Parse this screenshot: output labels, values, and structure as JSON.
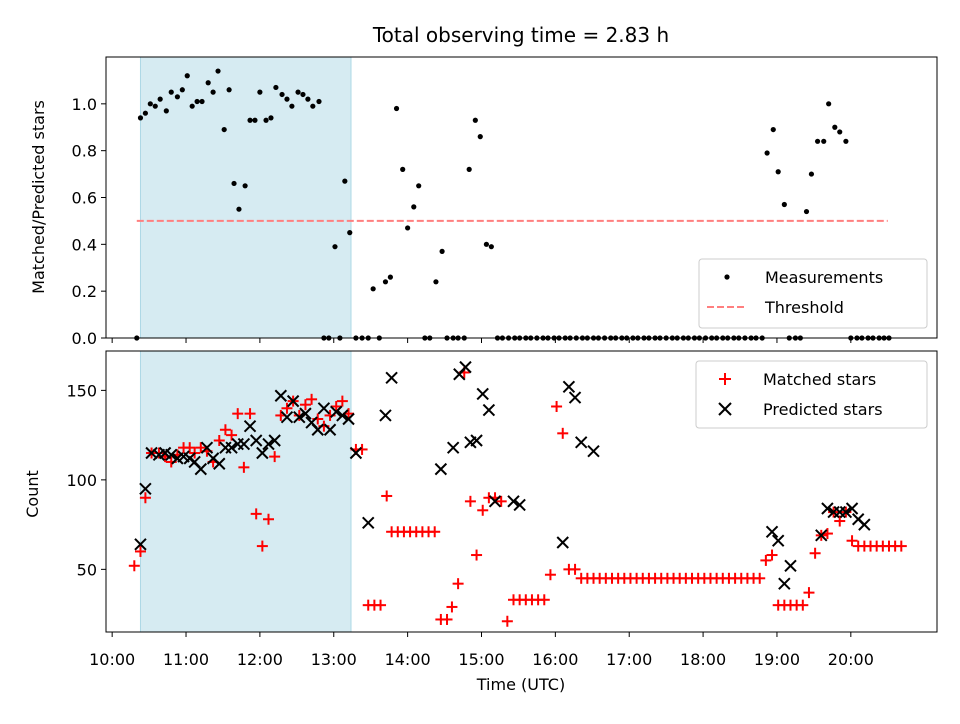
{
  "title": "Total observing time = 2.83 h",
  "colors": {
    "shade": "#add8e6",
    "threshold": "#ff7f7f",
    "matched": "#ff0000",
    "predicted": "#000000",
    "measurement": "#000000"
  },
  "chart_data": [
    {
      "type": "scatter",
      "ylabel": "Matched/Predicted stars",
      "xlabel": "",
      "xlim": [
        "09:55",
        "21:10"
      ],
      "ylim": [
        0,
        1.2
      ],
      "y_ticks": [
        "0.0",
        "0.2",
        "0.4",
        "0.6",
        "0.8",
        "1.0"
      ],
      "shaded_region": [
        "10:23",
        "13:14"
      ],
      "threshold": {
        "name": "Threshold",
        "value": 0.5,
        "x": [
          "10:20",
          "20:30"
        ],
        "style": "dashed"
      },
      "legend": {
        "position": "lower-right",
        "entries": [
          "Measurements",
          "Threshold"
        ]
      },
      "series": [
        {
          "name": "Measurements",
          "x": [
            "10:20",
            "10:23",
            "10:27",
            "10:31",
            "10:35",
            "10:39",
            "10:44",
            "10:48",
            "10:53",
            "10:57",
            "11:01",
            "11:05",
            "11:09",
            "11:13",
            "11:18",
            "11:22",
            "11:26",
            "11:31",
            "11:35",
            "11:39",
            "11:43",
            "11:48",
            "11:52",
            "11:56",
            "12:00",
            "12:05",
            "12:09",
            "12:13",
            "12:18",
            "12:22",
            "12:26",
            "12:31",
            "12:35",
            "12:39",
            "12:43",
            "12:48",
            "12:52",
            "12:56",
            "13:01",
            "13:05",
            "13:09",
            "13:13",
            "13:18",
            "13:23",
            "13:28",
            "13:32",
            "13:37",
            "13:42",
            "13:46",
            "13:51",
            "13:56",
            "14:00",
            "14:05",
            "14:09",
            "14:14",
            "14:18",
            "14:23",
            "14:28",
            "14:32",
            "14:37",
            "14:41",
            "14:46",
            "14:50",
            "14:55",
            "14:59",
            "15:04",
            "15:08",
            "15:13",
            "15:17",
            "15:22",
            "15:27",
            "15:31",
            "15:36",
            "15:40",
            "15:45",
            "15:50",
            "15:54",
            "15:59",
            "16:03",
            "16:08",
            "16:12",
            "16:17",
            "16:22",
            "16:26",
            "16:31",
            "16:35",
            "16:40",
            "16:45",
            "16:49",
            "16:54",
            "16:58",
            "17:03",
            "17:07",
            "17:12",
            "17:16",
            "17:21",
            "17:25",
            "17:30",
            "17:35",
            "17:39",
            "17:44",
            "17:48",
            "17:53",
            "17:57",
            "18:02",
            "18:07",
            "18:11",
            "18:16",
            "18:20",
            "18:25",
            "18:29",
            "18:34",
            "18:39",
            "18:43",
            "18:48",
            "18:52",
            "18:57",
            "19:01",
            "19:06",
            "19:10",
            "19:15",
            "19:19",
            "19:24",
            "19:28",
            "19:33",
            "19:38",
            "19:42",
            "19:47",
            "19:51",
            "19:56",
            "20:00",
            "20:05",
            "20:09",
            "20:14",
            "20:18",
            "20:23",
            "20:27",
            "20:31"
          ],
          "y": [
            0,
            0.94,
            0.96,
            1.0,
            0.99,
            1.02,
            0.97,
            1.05,
            1.03,
            1.06,
            1.12,
            0.99,
            1.01,
            1.01,
            1.09,
            1.05,
            1.14,
            0.89,
            1.06,
            0.66,
            0.55,
            0.65,
            0.93,
            0.93,
            1.05,
            0.93,
            0.94,
            1.07,
            1.04,
            1.02,
            0.99,
            1.05,
            1.04,
            1.02,
            0.99,
            1.01,
            0,
            0,
            0.39,
            0,
            0.67,
            0.45,
            0,
            0,
            0,
            0.21,
            0,
            0.24,
            0.26,
            0.98,
            0.72,
            0.47,
            0.56,
            0.65,
            0,
            0,
            0.24,
            0.37,
            0,
            0,
            0,
            0,
            0.72,
            0.93,
            0.86,
            0.4,
            0.39,
            0,
            0,
            0,
            0,
            0,
            0,
            0,
            0,
            0,
            0,
            0,
            0,
            0,
            0,
            0,
            0,
            0,
            0,
            0,
            0,
            0,
            0,
            0,
            0,
            0,
            0,
            0,
            0,
            0,
            0,
            0,
            0,
            0,
            0,
            0,
            0,
            0,
            0,
            0,
            0,
            0,
            0,
            0,
            0,
            0,
            0,
            0,
            0,
            0.79,
            0.89,
            0.71,
            0.57,
            0,
            0,
            0,
            0.54,
            0.7,
            0.84,
            0.84,
            1.0,
            0.9,
            0.88,
            0.84,
            0,
            0,
            0,
            0,
            0,
            0,
            0,
            0
          ]
        }
      ]
    },
    {
      "type": "scatter",
      "ylabel": "Count",
      "xlabel": "Time (UTC)",
      "xlim": [
        "09:55",
        "21:10"
      ],
      "ylim": [
        15,
        172
      ],
      "y_ticks": [
        "50",
        "100",
        "150"
      ],
      "x_ticks": [
        "10:00",
        "11:00",
        "12:00",
        "13:00",
        "14:00",
        "15:00",
        "16:00",
        "17:00",
        "18:00",
        "19:00",
        "20:00"
      ],
      "shaded_region": [
        "10:23",
        "13:14"
      ],
      "legend": {
        "position": "upper-right",
        "entries": [
          "Matched stars",
          "Predicted stars"
        ]
      },
      "series": [
        {
          "name": "Matched stars",
          "marker": "+",
          "x": [
            "10:18",
            "10:23",
            "10:27",
            "10:32",
            "10:38",
            "10:43",
            "10:48",
            "10:53",
            "10:58",
            "11:03",
            "11:07",
            "11:12",
            "11:17",
            "11:22",
            "11:27",
            "11:32",
            "11:37",
            "11:42",
            "11:47",
            "11:52",
            "11:57",
            "12:02",
            "12:07",
            "12:12",
            "12:17",
            "12:22",
            "12:27",
            "12:32",
            "12:37",
            "12:42",
            "12:47",
            "12:52",
            "12:57",
            "13:02",
            "13:07",
            "13:12",
            "13:18",
            "13:23",
            "13:28",
            "13:33",
            "13:38",
            "13:43",
            "13:47",
            "13:52",
            "13:57",
            "14:02",
            "14:07",
            "14:12",
            "14:17",
            "14:22",
            "14:27",
            "14:32",
            "14:36",
            "14:41",
            "14:46",
            "14:51",
            "14:56",
            "15:01",
            "15:06",
            "15:11",
            "15:16",
            "15:21",
            "15:26",
            "15:31",
            "15:36",
            "15:41",
            "15:46",
            "15:51",
            "15:56",
            "16:01",
            "16:06",
            "16:11",
            "16:16",
            "16:21",
            "16:26",
            "16:31",
            "16:36",
            "16:41",
            "16:46",
            "16:51",
            "16:56",
            "17:01",
            "17:06",
            "17:11",
            "17:16",
            "17:21",
            "17:26",
            "17:31",
            "17:36",
            "17:41",
            "17:46",
            "17:51",
            "17:56",
            "18:01",
            "18:06",
            "18:11",
            "18:16",
            "18:21",
            "18:26",
            "18:31",
            "18:36",
            "18:41",
            "18:46",
            "18:51",
            "18:56",
            "19:01",
            "19:06",
            "19:11",
            "19:16",
            "19:21",
            "19:26",
            "19:31",
            "19:36",
            "19:41",
            "19:46",
            "19:51",
            "19:56",
            "20:01",
            "20:06",
            "20:11",
            "20:16",
            "20:21",
            "20:26",
            "20:31",
            "20:36",
            "20:41"
          ],
          "y": [
            52,
            60,
            90,
            115,
            115,
            113,
            110,
            114,
            118,
            118,
            115,
            118,
            116,
            110,
            122,
            128,
            125,
            137,
            107,
            137,
            81,
            63,
            78,
            113,
            136,
            140,
            144,
            136,
            142,
            145,
            134,
            130,
            136,
            141,
            144,
            137,
            117,
            117,
            30,
            30,
            30,
            91,
            71,
            71,
            71,
            71,
            71,
            71,
            71,
            71,
            22,
            22,
            29,
            42,
            160,
            88,
            58,
            83,
            90,
            90,
            88,
            21,
            33,
            33,
            33,
            33,
            33,
            33,
            47,
            141,
            126,
            50,
            50,
            45,
            45,
            45,
            45,
            45,
            45,
            45,
            45,
            45,
            45,
            45,
            45,
            45,
            45,
            45,
            45,
            45,
            45,
            45,
            45,
            45,
            45,
            45,
            45,
            45,
            45,
            45,
            45,
            45,
            45,
            55,
            58,
            30,
            30,
            30,
            30,
            30,
            37,
            59,
            69,
            70,
            82,
            77,
            82,
            66,
            63,
            63,
            63,
            63,
            63,
            63,
            63,
            63
          ]
        },
        {
          "name": "Predicted stars",
          "marker": "x",
          "x": [
            "10:23",
            "10:27",
            "10:32",
            "10:38",
            "10:43",
            "10:48",
            "10:53",
            "10:58",
            "11:03",
            "11:07",
            "11:12",
            "11:17",
            "11:22",
            "11:27",
            "11:32",
            "11:37",
            "11:42",
            "11:47",
            "11:52",
            "11:57",
            "12:02",
            "12:07",
            "12:12",
            "12:17",
            "12:22",
            "12:27",
            "12:32",
            "12:37",
            "12:42",
            "12:47",
            "12:52",
            "12:57",
            "13:02",
            "13:07",
            "13:12",
            "13:18",
            "13:28",
            "13:42",
            "13:47",
            "14:27",
            "14:37",
            "14:42",
            "14:47",
            "14:51",
            "14:56",
            "15:01",
            "15:06",
            "15:11",
            "15:26",
            "15:31",
            "16:06",
            "16:11",
            "16:16",
            "16:21",
            "16:31",
            "18:56",
            "19:01",
            "19:06",
            "19:11",
            "19:36",
            "19:41",
            "19:46",
            "19:51",
            "19:56",
            "20:01",
            "20:06",
            "20:11"
          ],
          "y": [
            64,
            95,
            115,
            114,
            115,
            114,
            112,
            113,
            112,
            110,
            106,
            118,
            112,
            109,
            118,
            118,
            120,
            120,
            130,
            122,
            115,
            120,
            122,
            147,
            135,
            144,
            135,
            137,
            132,
            128,
            140,
            128,
            138,
            136,
            134,
            115,
            76,
            136,
            157,
            106,
            118,
            159,
            163,
            121,
            122,
            148,
            139,
            88,
            88,
            86,
            65,
            152,
            146,
            121,
            116,
            71,
            66,
            42,
            52,
            69,
            84,
            82,
            82,
            82,
            84,
            78,
            75
          ]
        }
      ]
    }
  ]
}
